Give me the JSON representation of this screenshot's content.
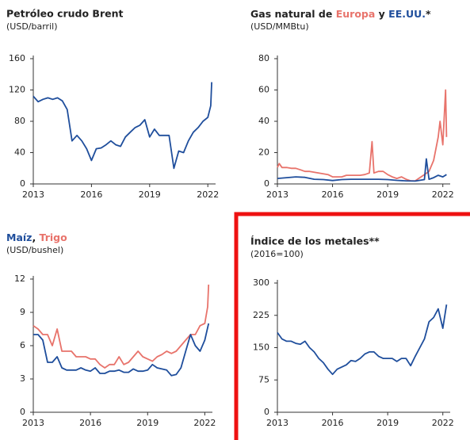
{
  "chart_data": [
    {
      "type": "line",
      "title": "Petróleo crudo Brent",
      "subtitle": "(USD/barril)",
      "xlim": [
        2013,
        2022.4
      ],
      "xticks": [
        2013,
        2016,
        2019,
        2022
      ],
      "ylim": [
        0,
        160
      ],
      "yticks": [
        0,
        40,
        80,
        120,
        160
      ],
      "series": [
        {
          "color": "#1f4e9c",
          "x": [
            2013,
            2013.25,
            2013.5,
            2013.75,
            2014,
            2014.25,
            2014.5,
            2014.75,
            2015,
            2015.25,
            2015.5,
            2015.75,
            2016,
            2016.25,
            2016.5,
            2016.75,
            2017,
            2017.25,
            2017.5,
            2017.75,
            2018,
            2018.25,
            2018.5,
            2018.75,
            2019,
            2019.25,
            2019.5,
            2019.75,
            2020,
            2020.25,
            2020.5,
            2020.75,
            2021,
            2021.25,
            2021.5,
            2021.75,
            2022,
            2022.15,
            2022.2
          ],
          "values": [
            112,
            105,
            108,
            110,
            108,
            110,
            106,
            95,
            55,
            62,
            55,
            45,
            30,
            45,
            46,
            50,
            55,
            50,
            48,
            60,
            66,
            72,
            75,
            82,
            60,
            70,
            62,
            62,
            62,
            20,
            42,
            40,
            55,
            66,
            72,
            80,
            85,
            100,
            130
          ]
        }
      ]
    },
    {
      "type": "line",
      "title": [
        {
          "text": "Gas natural de "
        },
        {
          "text": "Europa",
          "color": "#e8736b"
        },
        {
          "text": " y "
        },
        {
          "text": "EE.UU.",
          "color": "#1f4e9c"
        },
        {
          "text": "*"
        }
      ],
      "subtitle": "(USD/MMBtu)",
      "xlim": [
        2013,
        2022.4
      ],
      "xticks": [
        2013,
        2016,
        2019,
        2022
      ],
      "ylim": [
        0,
        80
      ],
      "yticks": [
        0,
        20,
        40,
        60,
        80
      ],
      "series": [
        {
          "color": "#e8736b",
          "x": [
            2013,
            2013.1,
            2013.25,
            2013.5,
            2013.75,
            2014,
            2014.25,
            2014.5,
            2014.75,
            2015,
            2015.25,
            2015.5,
            2015.75,
            2016,
            2016.25,
            2016.5,
            2016.75,
            2017,
            2017.25,
            2017.5,
            2017.75,
            2018,
            2018.15,
            2018.25,
            2018.5,
            2018.75,
            2019,
            2019.25,
            2019.5,
            2019.75,
            2020,
            2020.25,
            2020.5,
            2020.75,
            2021,
            2021.25,
            2021.5,
            2021.75,
            2021.85,
            2022,
            2022.15,
            2022.2
          ],
          "values": [
            10.5,
            13,
            10.5,
            10.5,
            10,
            10,
            9,
            8,
            8,
            7.5,
            7,
            6.5,
            6,
            4.5,
            4.5,
            4.5,
            5.5,
            5.5,
            5.5,
            5.5,
            6,
            7,
            27,
            7,
            8,
            8,
            6,
            4.5,
            3.5,
            4.5,
            3,
            2,
            2,
            4,
            6,
            8,
            15,
            30,
            40,
            25,
            60,
            30
          ]
        },
        {
          "color": "#1f4e9c",
          "x": [
            2013,
            2013.5,
            2014,
            2014.5,
            2015,
            2015.5,
            2016,
            2016.5,
            2017,
            2017.5,
            2018,
            2018.5,
            2019,
            2019.5,
            2020,
            2020.5,
            2021,
            2021.1,
            2021.25,
            2021.5,
            2021.75,
            2022,
            2022.2
          ],
          "values": [
            3.5,
            4,
            4.5,
            4.2,
            3,
            2.8,
            2.2,
            2.8,
            3,
            3,
            3,
            3,
            2.8,
            2.3,
            2,
            1.8,
            2.8,
            16,
            3,
            4,
            5.5,
            4.5,
            6
          ]
        }
      ]
    },
    {
      "type": "line",
      "title": [
        {
          "text": "Maíz",
          "color": "#1f4e9c"
        },
        {
          "text": ", "
        },
        {
          "text": "Trigo",
          "color": "#e8736b"
        }
      ],
      "subtitle": "(USD/bushel)",
      "xlim": [
        2013,
        2022.4
      ],
      "xticks": [
        2013,
        2016,
        2019,
        2022
      ],
      "ylim": [
        0,
        12
      ],
      "yticks": [
        0,
        3,
        6,
        9,
        12
      ],
      "series": [
        {
          "color": "#e8736b",
          "x": [
            2013,
            2013.25,
            2013.5,
            2013.75,
            2014,
            2014.25,
            2014.5,
            2014.75,
            2015,
            2015.25,
            2015.5,
            2015.75,
            2016,
            2016.25,
            2016.5,
            2016.75,
            2017,
            2017.25,
            2017.5,
            2017.75,
            2018,
            2018.25,
            2018.5,
            2018.75,
            2019,
            2019.25,
            2019.5,
            2019.75,
            2020,
            2020.25,
            2020.5,
            2020.75,
            2021,
            2021.25,
            2021.5,
            2021.75,
            2022,
            2022.15,
            2022.2
          ],
          "values": [
            7.8,
            7.5,
            7,
            7,
            6,
            7.5,
            5.5,
            5.5,
            5.5,
            5,
            5,
            5,
            4.8,
            4.8,
            4.3,
            4,
            4.3,
            4.3,
            5,
            4.3,
            4.5,
            5,
            5.5,
            5,
            4.8,
            4.6,
            5,
            5.2,
            5.5,
            5.3,
            5.5,
            6,
            6.5,
            7,
            7,
            7.8,
            8,
            9.5,
            11.5
          ]
        },
        {
          "color": "#1f4e9c",
          "x": [
            2013,
            2013.25,
            2013.5,
            2013.75,
            2014,
            2014.25,
            2014.5,
            2014.75,
            2015,
            2015.25,
            2015.5,
            2015.75,
            2016,
            2016.25,
            2016.5,
            2016.75,
            2017,
            2017.25,
            2017.5,
            2017.75,
            2018,
            2018.25,
            2018.5,
            2018.75,
            2019,
            2019.25,
            2019.5,
            2019.75,
            2020,
            2020.25,
            2020.5,
            2020.75,
            2021,
            2021.25,
            2021.5,
            2021.75,
            2022,
            2022.2
          ],
          "values": [
            7,
            7,
            6.5,
            4.5,
            4.5,
            5,
            4,
            3.8,
            3.8,
            3.8,
            4,
            3.8,
            3.7,
            4,
            3.5,
            3.5,
            3.7,
            3.7,
            3.8,
            3.6,
            3.6,
            3.9,
            3.7,
            3.7,
            3.8,
            4.3,
            4,
            3.9,
            3.8,
            3.3,
            3.4,
            4,
            5.5,
            7,
            6,
            5.5,
            6.5,
            8
          ]
        }
      ]
    },
    {
      "type": "line",
      "title": "Índice de los metales**",
      "subtitle": "(2016=100)",
      "xlim": [
        2013,
        2022.4
      ],
      "xticks": [
        2013,
        2016,
        2019,
        2022
      ],
      "ylim": [
        0,
        300
      ],
      "yticks": [
        0,
        75,
        150,
        225,
        300
      ],
      "series": [
        {
          "color": "#1f4e9c",
          "x": [
            2013,
            2013.25,
            2013.5,
            2013.75,
            2014,
            2014.25,
            2014.5,
            2014.75,
            2015,
            2015.25,
            2015.5,
            2015.75,
            2016,
            2016.25,
            2016.5,
            2016.75,
            2017,
            2017.25,
            2017.5,
            2017.75,
            2018,
            2018.25,
            2018.5,
            2018.75,
            2019,
            2019.25,
            2019.5,
            2019.75,
            2020,
            2020.25,
            2020.5,
            2020.75,
            2021,
            2021.25,
            2021.5,
            2021.75,
            2022,
            2022.2
          ],
          "values": [
            185,
            170,
            165,
            165,
            160,
            158,
            165,
            150,
            140,
            125,
            115,
            100,
            88,
            100,
            105,
            110,
            120,
            118,
            125,
            135,
            140,
            140,
            130,
            125,
            125,
            125,
            118,
            125,
            125,
            108,
            130,
            150,
            170,
            210,
            220,
            240,
            195,
            250
          ]
        }
      ]
    }
  ]
}
